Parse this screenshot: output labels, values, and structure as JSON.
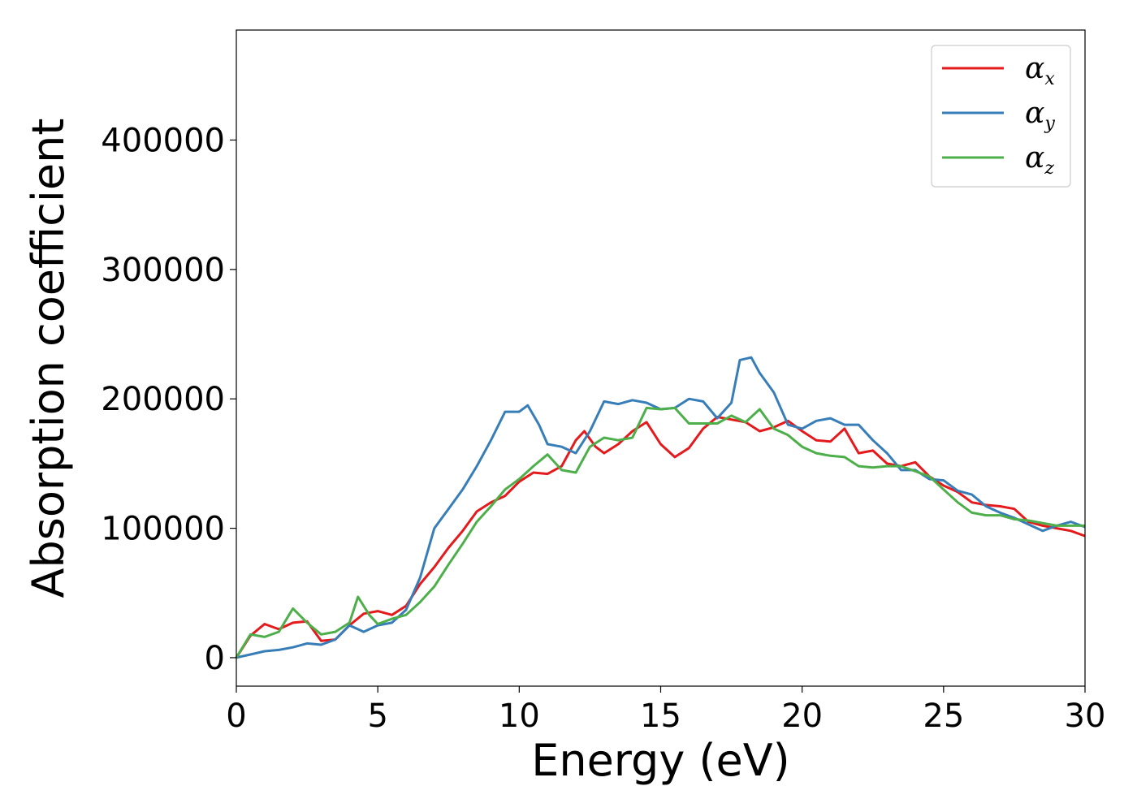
{
  "chart_data": {
    "type": "line",
    "title": "",
    "xlabel": "Energy (eV)",
    "ylabel": "Absorption coefficient",
    "xlim": [
      0,
      30
    ],
    "ylim": [
      -22000,
      485000
    ],
    "xticks": [
      0,
      5,
      10,
      15,
      20,
      25,
      30
    ],
    "xtick_labels": [
      "0",
      "5",
      "10",
      "15",
      "20",
      "25",
      "30"
    ],
    "yticks": [
      0,
      100000,
      200000,
      300000,
      400000
    ],
    "ytick_labels": [
      "0",
      "100000",
      "200000",
      "300000",
      "400000"
    ],
    "grid": false,
    "legend_position": "top-right",
    "series": [
      {
        "name": "α",
        "subscript": "x",
        "color": "#e41a1c",
        "points": [
          [
            0,
            0
          ],
          [
            0.5,
            17000
          ],
          [
            1,
            26000
          ],
          [
            1.5,
            22000
          ],
          [
            2,
            27000
          ],
          [
            2.5,
            28000
          ],
          [
            3,
            13000
          ],
          [
            3.5,
            14000
          ],
          [
            4,
            25000
          ],
          [
            4.5,
            34000
          ],
          [
            5,
            36000
          ],
          [
            5.5,
            33000
          ],
          [
            6,
            40000
          ],
          [
            6.5,
            57000
          ],
          [
            7,
            70000
          ],
          [
            7.5,
            85000
          ],
          [
            8,
            98000
          ],
          [
            8.5,
            113000
          ],
          [
            9,
            120000
          ],
          [
            9.5,
            125000
          ],
          [
            10,
            136000
          ],
          [
            10.5,
            143000
          ],
          [
            11,
            142000
          ],
          [
            11.5,
            148000
          ],
          [
            12,
            168000
          ],
          [
            12.3,
            175000
          ],
          [
            12.7,
            163000
          ],
          [
            13,
            158000
          ],
          [
            13.5,
            165000
          ],
          [
            14,
            175000
          ],
          [
            14.5,
            182000
          ],
          [
            15,
            165000
          ],
          [
            15.5,
            155000
          ],
          [
            16,
            162000
          ],
          [
            16.5,
            177000
          ],
          [
            17,
            186000
          ],
          [
            17.5,
            184000
          ],
          [
            18,
            182000
          ],
          [
            18.5,
            175000
          ],
          [
            19,
            178000
          ],
          [
            19.5,
            183000
          ],
          [
            20,
            175000
          ],
          [
            20.5,
            168000
          ],
          [
            21,
            167000
          ],
          [
            21.5,
            177000
          ],
          [
            22,
            158000
          ],
          [
            22.5,
            160000
          ],
          [
            23,
            150000
          ],
          [
            23.5,
            148000
          ],
          [
            24,
            151000
          ],
          [
            24.5,
            140000
          ],
          [
            25,
            133000
          ],
          [
            25.5,
            128000
          ],
          [
            26,
            120000
          ],
          [
            26.5,
            118000
          ],
          [
            27,
            117000
          ],
          [
            27.5,
            115000
          ],
          [
            28,
            105000
          ],
          [
            28.5,
            102000
          ],
          [
            29,
            100000
          ],
          [
            29.5,
            98000
          ],
          [
            30,
            94000
          ]
        ]
      },
      {
        "name": "α",
        "subscript": "y",
        "color": "#377eb8",
        "points": [
          [
            0,
            0
          ],
          [
            0.5,
            2500
          ],
          [
            1,
            5000
          ],
          [
            1.5,
            6000
          ],
          [
            2,
            8000
          ],
          [
            2.5,
            11000
          ],
          [
            3,
            10000
          ],
          [
            3.5,
            14000
          ],
          [
            4,
            25000
          ],
          [
            4.5,
            20000
          ],
          [
            5,
            25000
          ],
          [
            5.5,
            27000
          ],
          [
            6,
            37000
          ],
          [
            6.5,
            62000
          ],
          [
            7,
            100000
          ],
          [
            7.5,
            115000
          ],
          [
            8,
            130000
          ],
          [
            8.5,
            148000
          ],
          [
            9,
            168000
          ],
          [
            9.5,
            190000
          ],
          [
            10,
            190000
          ],
          [
            10.3,
            195000
          ],
          [
            10.7,
            180000
          ],
          [
            11,
            165000
          ],
          [
            11.5,
            163000
          ],
          [
            12,
            158000
          ],
          [
            12.5,
            175000
          ],
          [
            13,
            198000
          ],
          [
            13.5,
            196000
          ],
          [
            14,
            199000
          ],
          [
            14.5,
            197000
          ],
          [
            15,
            192000
          ],
          [
            15.5,
            193000
          ],
          [
            16,
            200000
          ],
          [
            16.5,
            198000
          ],
          [
            17,
            185000
          ],
          [
            17.5,
            197000
          ],
          [
            17.8,
            230000
          ],
          [
            18.2,
            232000
          ],
          [
            18.5,
            220000
          ],
          [
            19,
            205000
          ],
          [
            19.5,
            180000
          ],
          [
            20,
            177000
          ],
          [
            20.5,
            183000
          ],
          [
            21,
            185000
          ],
          [
            21.5,
            180000
          ],
          [
            22,
            180000
          ],
          [
            22.5,
            168000
          ],
          [
            23,
            158000
          ],
          [
            23.5,
            145000
          ],
          [
            24,
            145000
          ],
          [
            24.5,
            138000
          ],
          [
            25,
            137000
          ],
          [
            25.5,
            129000
          ],
          [
            26,
            126000
          ],
          [
            26.5,
            117000
          ],
          [
            27,
            112000
          ],
          [
            27.5,
            108000
          ],
          [
            28,
            103000
          ],
          [
            28.5,
            98000
          ],
          [
            29,
            102000
          ],
          [
            29.5,
            105000
          ],
          [
            30,
            101000
          ]
        ]
      },
      {
        "name": "α",
        "subscript": "z",
        "color": "#4daf4a",
        "points": [
          [
            0,
            0
          ],
          [
            0.5,
            18000
          ],
          [
            1,
            16000
          ],
          [
            1.5,
            20000
          ],
          [
            2,
            38000
          ],
          [
            2.5,
            27000
          ],
          [
            3,
            18000
          ],
          [
            3.5,
            20000
          ],
          [
            4,
            27000
          ],
          [
            4.3,
            47000
          ],
          [
            4.7,
            33000
          ],
          [
            5,
            26000
          ],
          [
            5.5,
            30000
          ],
          [
            6,
            33000
          ],
          [
            6.5,
            43000
          ],
          [
            7,
            55000
          ],
          [
            7.5,
            72000
          ],
          [
            8,
            88000
          ],
          [
            8.5,
            105000
          ],
          [
            9,
            117000
          ],
          [
            9.5,
            130000
          ],
          [
            10,
            138000
          ],
          [
            10.5,
            148000
          ],
          [
            11,
            157000
          ],
          [
            11.5,
            145000
          ],
          [
            12,
            143000
          ],
          [
            12.5,
            163000
          ],
          [
            13,
            170000
          ],
          [
            13.5,
            168000
          ],
          [
            14,
            170000
          ],
          [
            14.5,
            193000
          ],
          [
            15,
            192000
          ],
          [
            15.5,
            193000
          ],
          [
            16,
            181000
          ],
          [
            16.5,
            181000
          ],
          [
            17,
            181000
          ],
          [
            17.5,
            187000
          ],
          [
            18,
            182000
          ],
          [
            18.5,
            192000
          ],
          [
            19,
            177000
          ],
          [
            19.5,
            172000
          ],
          [
            20,
            163000
          ],
          [
            20.5,
            158000
          ],
          [
            21,
            156000
          ],
          [
            21.5,
            155000
          ],
          [
            22,
            148000
          ],
          [
            22.5,
            147000
          ],
          [
            23,
            148000
          ],
          [
            23.5,
            148000
          ],
          [
            24,
            144000
          ],
          [
            24.5,
            140000
          ],
          [
            25,
            130000
          ],
          [
            25.5,
            120000
          ],
          [
            26,
            112000
          ],
          [
            26.5,
            110000
          ],
          [
            27,
            110000
          ],
          [
            27.5,
            107000
          ],
          [
            28,
            106000
          ],
          [
            28.5,
            104000
          ],
          [
            29,
            102000
          ],
          [
            29.5,
            102000
          ],
          [
            30,
            102000
          ]
        ]
      }
    ]
  }
}
